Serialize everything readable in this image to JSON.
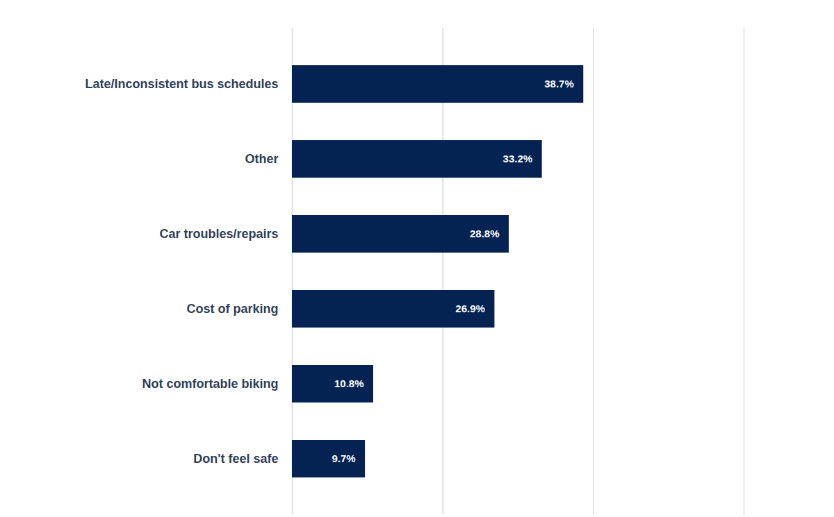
{
  "chart_data": {
    "type": "bar",
    "orientation": "horizontal",
    "categories": [
      "Late/Inconsistent bus schedules",
      "Other",
      "Car troubles/repairs",
      "Cost of parking",
      "Not comfortable biking",
      "Don't feel safe"
    ],
    "values": [
      38.7,
      33.2,
      28.8,
      26.9,
      10.8,
      9.7
    ],
    "value_labels": [
      "38.7%",
      "33.2%",
      "28.8%",
      "26.9%",
      "10.8%",
      "9.7%"
    ],
    "color": "#042352",
    "xlim": [
      0,
      60
    ],
    "xticks": [
      0,
      20,
      40,
      60
    ],
    "grid": true,
    "data_labels": true,
    "tick_labels": "y"
  }
}
